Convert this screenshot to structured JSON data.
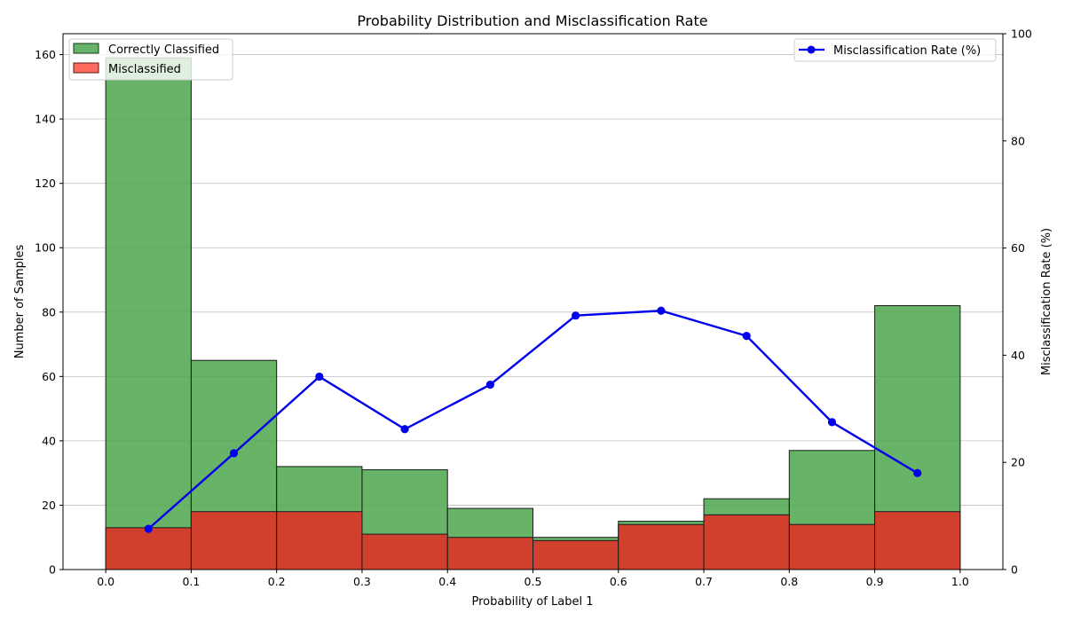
{
  "chart_data": {
    "type": "bar",
    "title": "Probability Distribution and Misclassification Rate",
    "xlabel": "Probability of Label 1",
    "ylabel": "Number of Samples",
    "y2label": "Misclassification Rate (%)",
    "xlim": [
      -0.05,
      1.05
    ],
    "ylim": [
      0,
      166.5
    ],
    "y2lim": [
      0,
      100
    ],
    "x_ticks": [
      "0.0",
      "0.1",
      "0.2",
      "0.3",
      "0.4",
      "0.5",
      "0.6",
      "0.7",
      "0.8",
      "0.9",
      "1.0"
    ],
    "x_tick_values": [
      0.0,
      0.1,
      0.2,
      0.3,
      0.4,
      0.5,
      0.6,
      0.7,
      0.8,
      0.9,
      1.0
    ],
    "y_ticks": [
      0,
      20,
      40,
      60,
      80,
      100,
      120,
      140,
      160
    ],
    "y2_ticks": [
      0,
      20,
      40,
      60,
      80,
      100
    ],
    "grid": "horizontal",
    "bin_edges": [
      0.0,
      0.1,
      0.2,
      0.3,
      0.4,
      0.5,
      0.6,
      0.7,
      0.8,
      0.9,
      1.0
    ],
    "series": [
      {
        "name": "Correctly Classified",
        "kind": "bar",
        "color": "#4ca64c",
        "values": [
          159,
          65,
          32,
          31,
          19,
          10,
          15,
          22,
          37,
          82
        ]
      },
      {
        "name": "Misclassified",
        "kind": "bar",
        "color": "#d63a2a",
        "values": [
          13,
          18,
          18,
          11,
          10,
          9,
          14,
          17,
          14,
          18
        ]
      },
      {
        "name": "Misclassification Rate (%)",
        "kind": "line",
        "axis": "right",
        "color": "#0000ee",
        "x": [
          0.05,
          0.15,
          0.25,
          0.35,
          0.45,
          0.55,
          0.65,
          0.75,
          0.85,
          0.95
        ],
        "values": [
          7.6,
          21.7,
          36.0,
          26.2,
          34.5,
          47.4,
          48.3,
          43.6,
          27.5,
          18.0
        ]
      }
    ],
    "legend_left": "upper-left",
    "legend_right": "upper-right"
  }
}
